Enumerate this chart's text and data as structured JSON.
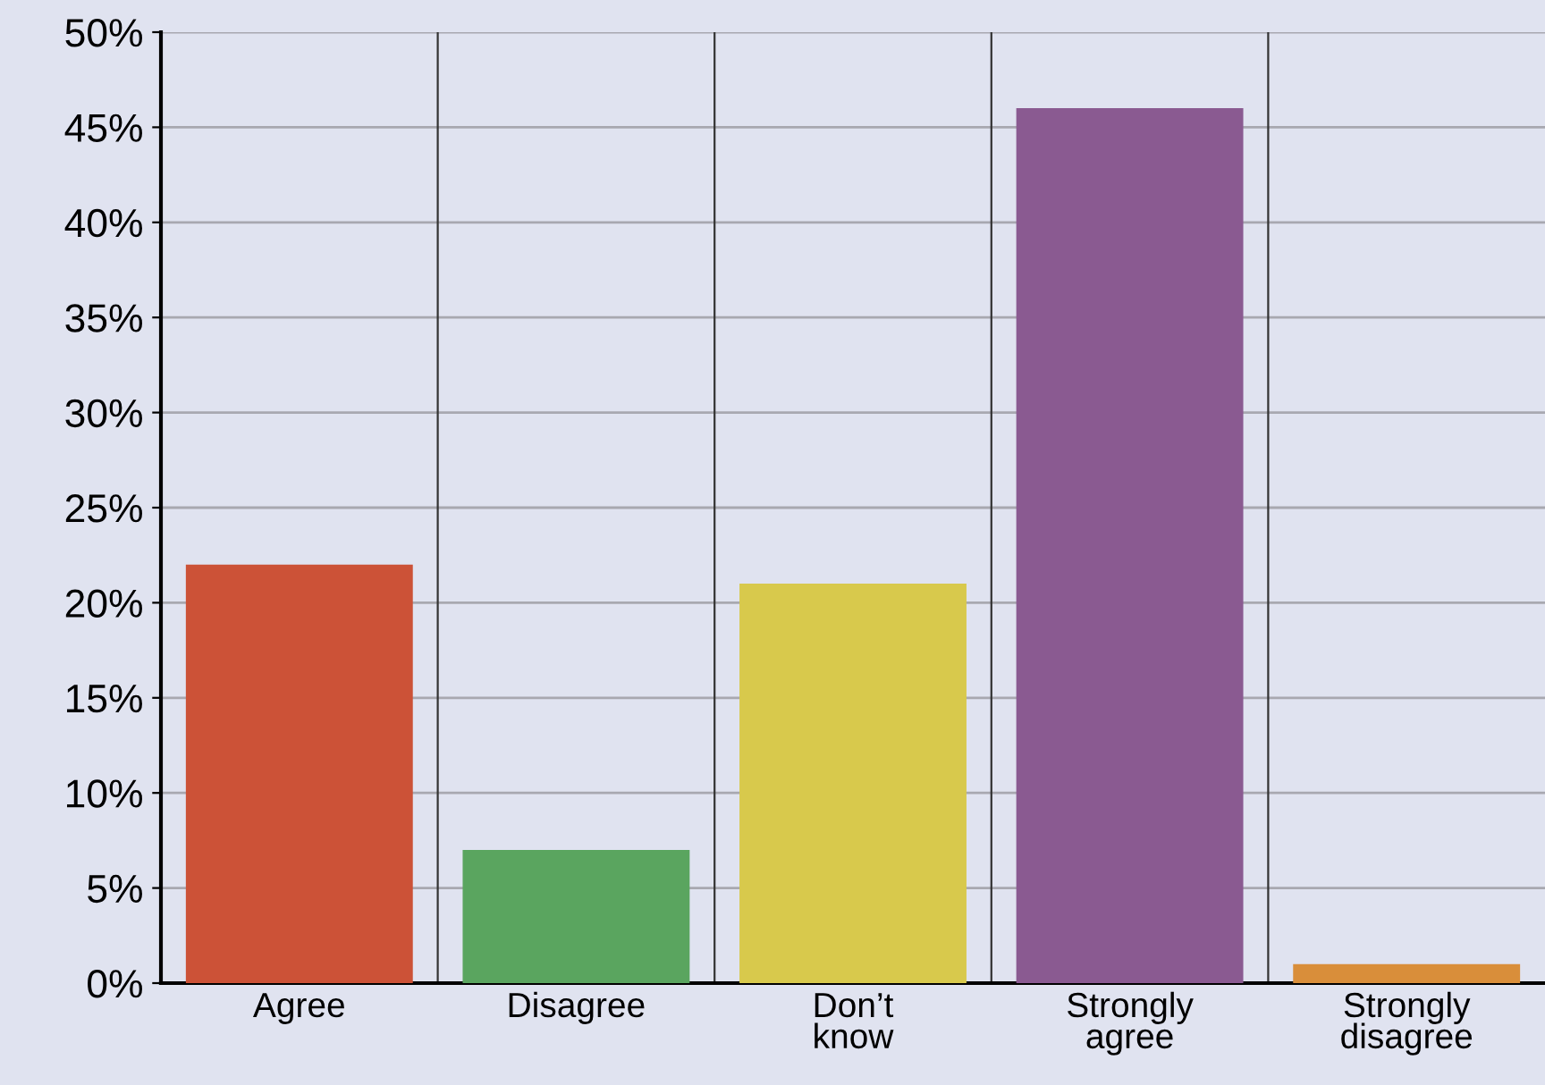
{
  "chart_data": {
    "type": "bar",
    "categories": [
      "Agree",
      "Disagree",
      "Don’t know",
      "Strongly agree",
      "Strongly disagree"
    ],
    "values": [
      22,
      7,
      21,
      46,
      1
    ],
    "colors": [
      "#cc5237",
      "#5aa55f",
      "#d8c94c",
      "#8a5a91",
      "#d98e3a"
    ],
    "ylim": [
      0,
      50
    ],
    "yticks": [
      {
        "value": 0,
        "label": "0%"
      },
      {
        "value": 5,
        "label": "5%"
      },
      {
        "value": 10,
        "label": "10%"
      },
      {
        "value": 15,
        "label": "15%"
      },
      {
        "value": 20,
        "label": "20%"
      },
      {
        "value": 25,
        "label": "25%"
      },
      {
        "value": 30,
        "label": "30%"
      },
      {
        "value": 35,
        "label": "35%"
      },
      {
        "value": 40,
        "label": "40%"
      },
      {
        "value": 45,
        "label": "45%"
      },
      {
        "value": 50,
        "label": "50%"
      }
    ],
    "grid": true
  }
}
